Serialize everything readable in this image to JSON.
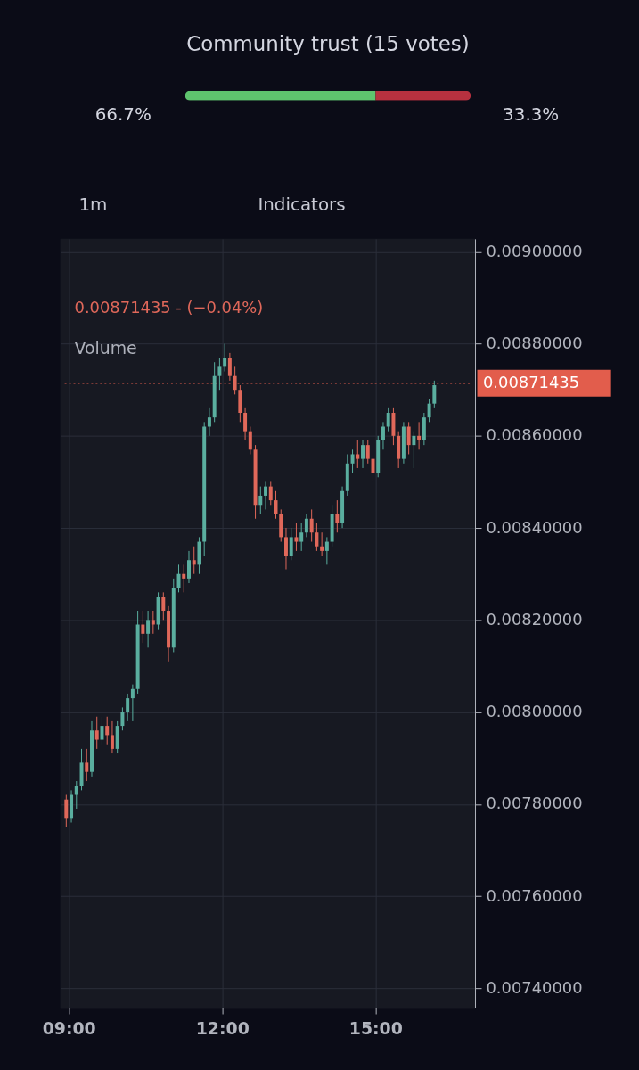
{
  "chart_data": [
    {
      "type": "bar",
      "orientation": "horizontal",
      "stacked": true,
      "title": "Community trust (15 votes)",
      "categories": [
        null
      ],
      "series": [
        {
          "color": "#5ec46e",
          "values": [
            66.7
          ],
          "value_labels": [
            "66.7%"
          ]
        },
        {
          "color": "#b7313f",
          "values": [
            33.3
          ],
          "value_labels": [
            "33.3%"
          ]
        }
      ],
      "xlim": [
        0,
        100
      ]
    },
    {
      "type": "candlestick",
      "x": [
        8.95,
        9.05,
        9.15,
        9.25,
        9.35,
        9.45,
        9.55,
        9.65,
        9.75,
        9.85,
        9.95,
        10.05,
        10.15,
        10.25,
        10.35,
        10.45,
        10.55,
        10.65,
        10.75,
        10.85,
        10.95,
        11.05,
        11.15,
        11.25,
        11.35,
        11.45,
        11.55,
        11.65,
        11.75,
        11.85,
        11.95,
        12.05,
        12.15,
        12.25,
        12.35,
        12.45,
        12.55,
        12.65,
        12.75,
        12.85,
        12.95,
        13.05,
        13.15,
        13.25,
        13.35,
        13.45,
        13.55,
        13.65,
        13.75,
        13.85,
        13.95,
        14.05,
        14.15,
        14.25,
        14.35,
        14.45,
        14.55,
        14.65,
        14.75,
        14.85,
        14.95,
        15.05,
        15.15,
        15.25,
        15.35,
        15.45,
        15.55,
        15.65,
        15.75,
        15.85,
        15.95,
        16.05,
        16.15
      ],
      "ohlc": [
        [
          0.00781,
          0.00782,
          0.00775,
          0.00777
        ],
        [
          0.00777,
          0.00783,
          0.00776,
          0.00782
        ],
        [
          0.00782,
          0.00785,
          0.00779,
          0.00784
        ],
        [
          0.00784,
          0.00792,
          0.00783,
          0.00789
        ],
        [
          0.00789,
          0.00792,
          0.00785,
          0.00787
        ],
        [
          0.00787,
          0.00798,
          0.00786,
          0.00796
        ],
        [
          0.00796,
          0.00799,
          0.00792,
          0.00794
        ],
        [
          0.00794,
          0.00799,
          0.00793,
          0.00797
        ],
        [
          0.00797,
          0.00799,
          0.00793,
          0.00795
        ],
        [
          0.00795,
          0.00798,
          0.00791,
          0.00792
        ],
        [
          0.00792,
          0.00798,
          0.00791,
          0.00797
        ],
        [
          0.00797,
          0.00801,
          0.00796,
          0.008
        ],
        [
          0.008,
          0.00804,
          0.00798,
          0.00803
        ],
        [
          0.00803,
          0.00806,
          0.00798,
          0.00805
        ],
        [
          0.00805,
          0.00822,
          0.00804,
          0.00819
        ],
        [
          0.00819,
          0.00822,
          0.00815,
          0.00817
        ],
        [
          0.00817,
          0.00822,
          0.00814,
          0.0082
        ],
        [
          0.0082,
          0.00822,
          0.00817,
          0.00819
        ],
        [
          0.00819,
          0.00826,
          0.00818,
          0.00825
        ],
        [
          0.00825,
          0.00826,
          0.0082,
          0.00822
        ],
        [
          0.00822,
          0.00823,
          0.00811,
          0.00814
        ],
        [
          0.00814,
          0.00829,
          0.00813,
          0.00827
        ],
        [
          0.00827,
          0.00832,
          0.00826,
          0.0083
        ],
        [
          0.0083,
          0.00832,
          0.00826,
          0.00829
        ],
        [
          0.00829,
          0.00835,
          0.00828,
          0.00833
        ],
        [
          0.00833,
          0.00836,
          0.0083,
          0.00832
        ],
        [
          0.00832,
          0.00838,
          0.0083,
          0.00837
        ],
        [
          0.00837,
          0.00863,
          0.00834,
          0.00862
        ],
        [
          0.00862,
          0.00866,
          0.0086,
          0.00864
        ],
        [
          0.00864,
          0.00876,
          0.00863,
          0.00873
        ],
        [
          0.00873,
          0.00877,
          0.0087,
          0.00875
        ],
        [
          0.00875,
          0.0088,
          0.00874,
          0.00877
        ],
        [
          0.00877,
          0.00878,
          0.00872,
          0.00873
        ],
        [
          0.00873,
          0.00875,
          0.00869,
          0.0087
        ],
        [
          0.0087,
          0.00871,
          0.00863,
          0.00865
        ],
        [
          0.00865,
          0.00866,
          0.00859,
          0.00861
        ],
        [
          0.00861,
          0.00862,
          0.00856,
          0.00857
        ],
        [
          0.00857,
          0.00858,
          0.00842,
          0.00845
        ],
        [
          0.00845,
          0.00849,
          0.00843,
          0.00847
        ],
        [
          0.00847,
          0.0085,
          0.00844,
          0.00849
        ],
        [
          0.00849,
          0.0085,
          0.00845,
          0.00846
        ],
        [
          0.00846,
          0.00848,
          0.00842,
          0.00843
        ],
        [
          0.00843,
          0.00844,
          0.00837,
          0.00838
        ],
        [
          0.00838,
          0.0084,
          0.00831,
          0.00834
        ],
        [
          0.00834,
          0.0084,
          0.00833,
          0.00838
        ],
        [
          0.00838,
          0.00841,
          0.00835,
          0.00837
        ],
        [
          0.00837,
          0.00841,
          0.00835,
          0.00839
        ],
        [
          0.00839,
          0.00843,
          0.00838,
          0.00842
        ],
        [
          0.00842,
          0.00844,
          0.00837,
          0.00839
        ],
        [
          0.00839,
          0.00841,
          0.00835,
          0.00836
        ],
        [
          0.00836,
          0.00839,
          0.00834,
          0.00835
        ],
        [
          0.00835,
          0.00838,
          0.00832,
          0.00837
        ],
        [
          0.00837,
          0.00845,
          0.00836,
          0.00843
        ],
        [
          0.00843,
          0.00846,
          0.00839,
          0.00841
        ],
        [
          0.00841,
          0.00849,
          0.0084,
          0.00848
        ],
        [
          0.00848,
          0.00856,
          0.00847,
          0.00854
        ],
        [
          0.00854,
          0.00857,
          0.00852,
          0.00856
        ],
        [
          0.00856,
          0.00859,
          0.00853,
          0.00855
        ],
        [
          0.00855,
          0.00859,
          0.00853,
          0.00858
        ],
        [
          0.00858,
          0.00859,
          0.00854,
          0.00855
        ],
        [
          0.00855,
          0.00856,
          0.0085,
          0.00852
        ],
        [
          0.00852,
          0.0086,
          0.00851,
          0.00859
        ],
        [
          0.00859,
          0.00863,
          0.00857,
          0.00862
        ],
        [
          0.00862,
          0.00866,
          0.00861,
          0.00865
        ],
        [
          0.00865,
          0.00866,
          0.00858,
          0.0086
        ],
        [
          0.0086,
          0.00861,
          0.00853,
          0.00855
        ],
        [
          0.00855,
          0.00863,
          0.00854,
          0.00862
        ],
        [
          0.00862,
          0.00863,
          0.00856,
          0.00858
        ],
        [
          0.00858,
          0.00861,
          0.00853,
          0.0086
        ],
        [
          0.0086,
          0.00863,
          0.00857,
          0.00859
        ],
        [
          0.00859,
          0.00865,
          0.00858,
          0.00864
        ],
        [
          0.00864,
          0.00868,
          0.00863,
          0.00867
        ],
        [
          0.00867,
          0.00872,
          0.00866,
          0.00871
        ]
      ],
      "colors": [
        "#e0685a",
        "#5aae9f",
        "#5aae9f",
        "#5aae9f",
        "#e0685a",
        "#5aae9f",
        "#e0685a",
        "#5aae9f",
        "#e0685a",
        "#e0685a",
        "#5aae9f",
        "#5aae9f",
        "#5aae9f",
        "#5aae9f",
        "#5aae9f",
        "#e0685a",
        "#5aae9f",
        "#e0685a",
        "#5aae9f",
        "#e0685a",
        "#e0685a",
        "#5aae9f",
        "#5aae9f",
        "#e0685a",
        "#5aae9f",
        "#e0685a",
        "#5aae9f",
        "#5aae9f",
        "#5aae9f",
        "#5aae9f",
        "#5aae9f",
        "#5aae9f",
        "#e0685a",
        "#e0685a",
        "#e0685a",
        "#e0685a",
        "#e0685a",
        "#e0685a",
        "#5aae9f",
        "#5aae9f",
        "#e0685a",
        "#e0685a",
        "#e0685a",
        "#e0685a",
        "#5aae9f",
        "#e0685a",
        "#5aae9f",
        "#5aae9f",
        "#e0685a",
        "#e0685a",
        "#e0685a",
        "#5aae9f",
        "#5aae9f",
        "#e0685a",
        "#5aae9f",
        "#5aae9f",
        "#5aae9f",
        "#e0685a",
        "#5aae9f",
        "#e0685a",
        "#e0685a",
        "#5aae9f",
        "#5aae9f",
        "#5aae9f",
        "#e0685a",
        "#e0685a",
        "#5aae9f",
        "#e0685a",
        "#5aae9f",
        "#e0685a",
        "#5aae9f",
        "#5aae9f",
        "#5aae9f"
      ],
      "xlim": [
        8.92,
        16.86
      ],
      "xticks": [
        {
          "value": 9,
          "label": "09:00"
        },
        {
          "value": 12,
          "label": "12:00"
        },
        {
          "value": 15,
          "label": "15:00"
        }
      ],
      "ylim": [
        0.007358,
        0.009028
      ],
      "yticks": [
        {
          "value": 0.0074,
          "label": "0.00740000"
        },
        {
          "value": 0.0076,
          "label": "0.00760000"
        },
        {
          "value": 0.0078,
          "label": "0.00780000"
        },
        {
          "value": 0.008,
          "label": "0.00800000"
        },
        {
          "value": 0.0082,
          "label": "0.00820000"
        },
        {
          "value": 0.0084,
          "label": "0.00840000"
        },
        {
          "value": 0.0086,
          "label": "0.00860000"
        },
        {
          "value": 0.0088,
          "label": "0.00880000"
        },
        {
          "value": 0.009,
          "label": "0.00900000"
        }
      ],
      "grid": true,
      "ref_lines": [
        {
          "axis": "y",
          "value": 0.00871435,
          "label": "0.00871435",
          "color": "#e25d4c",
          "line_style": "dotted"
        }
      ],
      "annotations": [
        "1m",
        "Indicators",
        "0.00871435 - (−0.04%)",
        "Volume"
      ]
    }
  ]
}
